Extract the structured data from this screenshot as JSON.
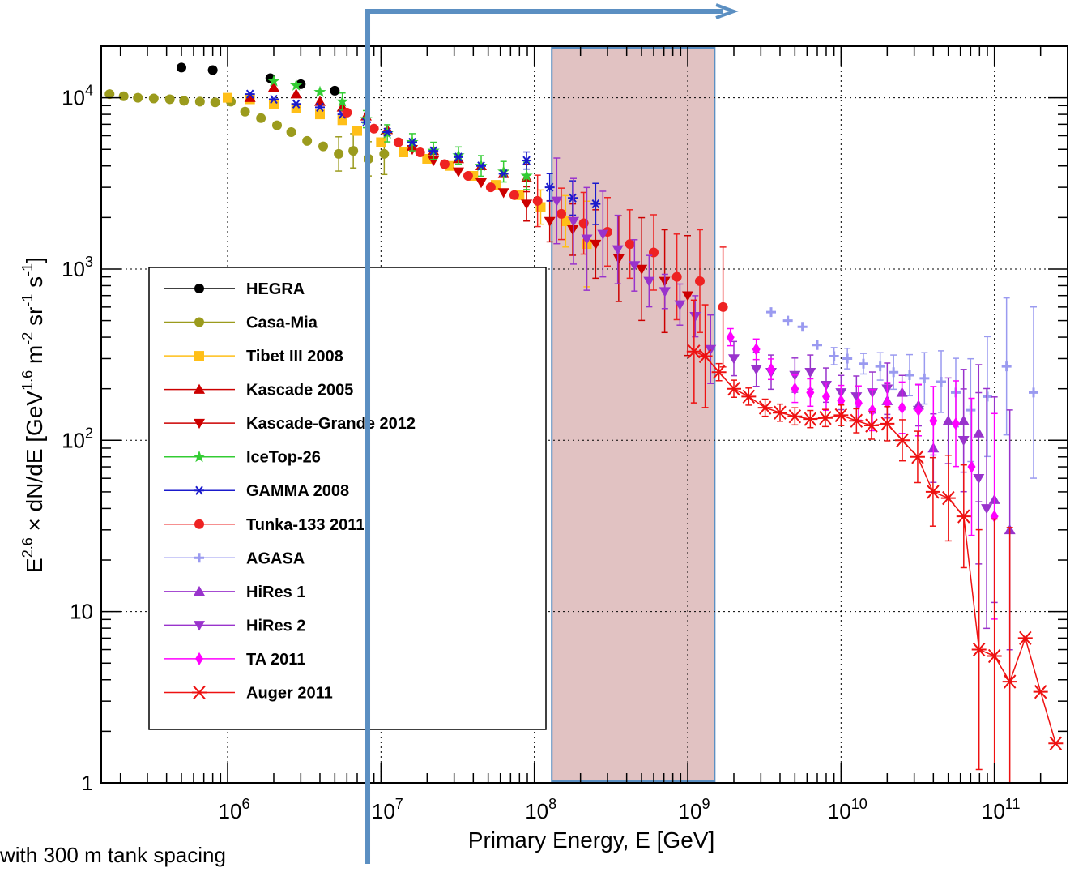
{
  "chart_data": {
    "type": "scatter",
    "xlabel": "Primary Energy, E [GeV]",
    "ylabel": "E^{2.6} × dN/dE [GeV^{1.6} m^{-2} sr^{-1} s^{-1}]",
    "xscale": "log",
    "yscale": "log",
    "xlim": [
      150000,
      300000000000
    ],
    "ylim": [
      1,
      20000
    ],
    "grid": true,
    "legend_position": "lower-left inside",
    "x_tick_labels": [
      {
        "value": 1000000,
        "base": "10",
        "exp": "6"
      },
      {
        "value": 10000000,
        "base": "10",
        "exp": "7"
      },
      {
        "value": 100000000,
        "base": "10",
        "exp": "8"
      },
      {
        "value": 1000000000,
        "base": "10",
        "exp": "9"
      },
      {
        "value": 10000000000,
        "base": "10",
        "exp": "10"
      },
      {
        "value": 100000000000,
        "base": "10",
        "exp": "11"
      }
    ],
    "y_tick_labels": [
      {
        "value": 1,
        "base": "1",
        "exp": ""
      },
      {
        "value": 10,
        "base": "10",
        "exp": ""
      },
      {
        "value": 100,
        "base": "10",
        "exp": "2"
      },
      {
        "value": 1000,
        "base": "10",
        "exp": "3"
      },
      {
        "value": 10000,
        "base": "10",
        "exp": "4"
      }
    ],
    "highlight_band": {
      "x_range": [
        130000000,
        1500000000
      ],
      "color": "#c9908f"
    },
    "overlay_arrow": {
      "x": 8200000,
      "x_end": 2000000000,
      "color": "#5b8fc2"
    },
    "series": [
      {
        "name": "HEGRA",
        "color": "#000000",
        "marker": "circle",
        "points": [
          [
            500000,
            15000,
            0
          ],
          [
            800000,
            14500,
            0
          ],
          [
            1900000,
            13000,
            0
          ],
          [
            3000000,
            12000,
            0
          ],
          [
            5000000,
            11000,
            0
          ]
        ]
      },
      {
        "name": "Casa-Mia",
        "color": "#9b9b1d",
        "marker": "circle",
        "points": [
          [
            170000,
            10500,
            0
          ],
          [
            210000,
            10200,
            0
          ],
          [
            260000,
            10000,
            0
          ],
          [
            330000,
            9900,
            0
          ],
          [
            420000,
            9800,
            0
          ],
          [
            520000,
            9600,
            0
          ],
          [
            660000,
            9500,
            0
          ],
          [
            830000,
            9400,
            0
          ],
          [
            1050000,
            9500,
            0
          ],
          [
            1300000,
            8300,
            0
          ],
          [
            1650000,
            7600,
            0
          ],
          [
            2100000,
            6900,
            0
          ],
          [
            2600000,
            6300,
            0
          ],
          [
            3300000,
            5600,
            0
          ],
          [
            4200000,
            5200,
            0
          ],
          [
            5300000,
            4700,
            0.1
          ],
          [
            6600000,
            4900,
            0.1
          ],
          [
            8300000,
            4400,
            0.1
          ],
          [
            10500000,
            4700,
            0.12
          ]
        ]
      },
      {
        "name": "Tibet III 2008",
        "color": "#ffbf18",
        "marker": "square",
        "points": [
          [
            1000000,
            10000,
            0
          ],
          [
            1400000,
            9800,
            0
          ],
          [
            2000000,
            9200,
            0
          ],
          [
            2800000,
            8700,
            0
          ],
          [
            4000000,
            8000,
            0
          ],
          [
            5600000,
            7400,
            0
          ],
          [
            7000000,
            6400,
            0
          ],
          [
            10000000,
            5500,
            0
          ],
          [
            14000000,
            4800,
            0
          ],
          [
            20000000,
            4400,
            0
          ],
          [
            28000000,
            4000,
            0
          ],
          [
            40000000,
            3500,
            0
          ],
          [
            56000000,
            3100,
            0
          ],
          [
            80000000,
            2700,
            0
          ],
          [
            110000000,
            2300,
            0.1
          ],
          [
            160000000,
            1900,
            0.15
          ],
          [
            220000000,
            1400,
            0.25
          ]
        ]
      },
      {
        "name": "Kascade 2005",
        "color": "#cc0000",
        "marker": "tri-up",
        "points": [
          [
            1400000,
            10000,
            0
          ],
          [
            2000000,
            11500,
            0
          ],
          [
            2800000,
            10500,
            0
          ],
          [
            4000000,
            9500,
            0
          ],
          [
            5600000,
            8800,
            0
          ],
          [
            8000000,
            7800,
            0
          ],
          [
            11000000,
            6500,
            0
          ],
          [
            16000000,
            5200,
            0
          ],
          [
            22000000,
            4900,
            0
          ],
          [
            32000000,
            4400,
            0
          ],
          [
            45000000,
            4000,
            0
          ],
          [
            63000000,
            3600,
            0
          ],
          [
            89000000,
            3400,
            0.08
          ]
        ]
      },
      {
        "name": "Kascade-Grande 2012",
        "color": "#cc0000",
        "marker": "tri-down",
        "points": [
          [
            16000000,
            5000,
            0
          ],
          [
            22000000,
            4300,
            0
          ],
          [
            32000000,
            3700,
            0
          ],
          [
            45000000,
            3200,
            0
          ],
          [
            63000000,
            2800,
            0
          ],
          [
            89000000,
            2400,
            0.1
          ],
          [
            126000000,
            1900,
            0.12
          ],
          [
            178000000,
            1700,
            0.15
          ],
          [
            251000000,
            1400,
            0.2
          ],
          [
            355000000,
            1150,
            0.25
          ],
          [
            501000000,
            1000,
            0.3
          ],
          [
            708000000,
            850,
            0.3
          ],
          [
            1000000000,
            700,
            0.35
          ]
        ]
      },
      {
        "name": "IceTop-26",
        "color": "#33cc33",
        "marker": "star",
        "points": [
          [
            2000000,
            12500,
            0
          ],
          [
            2800000,
            11800,
            0
          ],
          [
            4000000,
            10800,
            0
          ],
          [
            5600000,
            9500,
            0.05
          ],
          [
            8000000,
            7500,
            0.05
          ],
          [
            11000000,
            6200,
            0.05
          ],
          [
            16000000,
            5500,
            0.05
          ],
          [
            22000000,
            4900,
            0.05
          ],
          [
            32000000,
            4600,
            0.05
          ],
          [
            45000000,
            4000,
            0.06
          ],
          [
            63000000,
            3700,
            0.06
          ],
          [
            89000000,
            3500,
            0.08
          ]
        ]
      },
      {
        "name": "GAMMA 2008",
        "color": "#1a1acc",
        "marker": "asterisk",
        "points": [
          [
            1400000,
            10500,
            0
          ],
          [
            2000000,
            9800,
            0
          ],
          [
            2800000,
            9200,
            0
          ],
          [
            4000000,
            8800,
            0
          ],
          [
            5600000,
            8000,
            0
          ],
          [
            8000000,
            7200,
            0
          ],
          [
            11000000,
            6300,
            0
          ],
          [
            16000000,
            5500,
            0
          ],
          [
            22000000,
            4900,
            0
          ],
          [
            32000000,
            4500,
            0
          ],
          [
            45000000,
            4000,
            0
          ],
          [
            63000000,
            3600,
            0
          ],
          [
            89000000,
            4300,
            0.05
          ],
          [
            126000000,
            3000,
            0.08
          ],
          [
            178000000,
            2600,
            0.1
          ],
          [
            251000000,
            2400,
            0.12
          ]
        ]
      },
      {
        "name": "Tunka-133 2011",
        "color": "#ee2222",
        "marker": "circle",
        "points": [
          [
            6000000,
            8200,
            0
          ],
          [
            9000000,
            6600,
            0
          ],
          [
            13000000,
            5500,
            0
          ],
          [
            18000000,
            4800,
            0
          ],
          [
            26000000,
            4100,
            0
          ],
          [
            37000000,
            3500,
            0
          ],
          [
            52000000,
            3000,
            0
          ],
          [
            74000000,
            2700,
            0
          ],
          [
            105000000,
            2500,
            0.15
          ],
          [
            150000000,
            2100,
            0.15
          ],
          [
            210000000,
            1850,
            0.18
          ],
          [
            300000000,
            1650,
            0.2
          ],
          [
            420000000,
            1400,
            0.2
          ],
          [
            600000000,
            1250,
            0.22
          ],
          [
            850000000,
            900,
            0.25
          ],
          [
            1200000000,
            850,
            0.3
          ],
          [
            1700000000,
            600,
            0.35
          ]
        ]
      },
      {
        "name": "AGASA",
        "color": "#9a9af0",
        "marker": "plus",
        "points": [
          [
            3500000000,
            560,
            0
          ],
          [
            4500000000,
            500,
            0
          ],
          [
            5600000000,
            460,
            0
          ],
          [
            7000000000,
            360,
            0
          ],
          [
            9000000000,
            310,
            0.05
          ],
          [
            11000000000,
            300,
            0.06
          ],
          [
            14000000000,
            280,
            0.06
          ],
          [
            18000000000,
            270,
            0.08
          ],
          [
            22000000000,
            250,
            0.1
          ],
          [
            28000000000,
            240,
            0.12
          ],
          [
            35000000000,
            230,
            0.15
          ],
          [
            45000000000,
            220,
            0.18
          ],
          [
            56000000000,
            190,
            0.2
          ],
          [
            70000000000,
            150,
            0.3
          ],
          [
            90000000000,
            180,
            0.35
          ],
          [
            120000000000,
            270,
            0.4
          ],
          [
            180000000000,
            190,
            0.5
          ]
        ]
      },
      {
        "name": "HiRes 1",
        "color": "#9933cc",
        "marker": "tri-up",
        "points": [
          [
            20000000000,
            170,
            0.1
          ],
          [
            25000000000,
            190,
            0.1
          ],
          [
            32000000000,
            160,
            0.12
          ],
          [
            40000000000,
            90,
            0.2
          ],
          [
            50000000000,
            130,
            0.25
          ],
          [
            63000000000,
            130,
            0.3
          ],
          [
            79000000000,
            110,
            0.4
          ],
          [
            100000000000,
            45,
            0.6
          ],
          [
            126000000000,
            30,
            0.7
          ]
        ]
      },
      {
        "name": "HiRes 2",
        "color": "#9933cc",
        "marker": "tri-down",
        "points": [
          [
            140000000,
            2500,
            0.25
          ],
          [
            180000000,
            1900,
            0.25
          ],
          [
            220000000,
            1500,
            0.3
          ],
          [
            280000000,
            1600,
            0.25
          ],
          [
            350000000,
            1300,
            0.2
          ],
          [
            450000000,
            1050,
            0.15
          ],
          [
            560000000,
            850,
            0.15
          ],
          [
            710000000,
            740,
            0.1
          ],
          [
            890000000,
            620,
            0.12
          ],
          [
            1120000000,
            530,
            0.12
          ],
          [
            1410000000,
            340,
            0.2
          ],
          [
            2000000000,
            300,
            0.1
          ],
          [
            2800000000,
            260,
            0.1
          ],
          [
            3500000000,
            250,
            0.1
          ],
          [
            5000000000,
            240,
            0.1
          ],
          [
            6300000000,
            250,
            0.1
          ],
          [
            8000000000,
            210,
            0.1
          ],
          [
            10000000000,
            190,
            0.1
          ],
          [
            12600000000,
            180,
            0.12
          ],
          [
            16000000000,
            190,
            0.12
          ],
          [
            20000000000,
            200,
            0.15
          ],
          [
            32000000000,
            150,
            0.15
          ],
          [
            63000000000,
            100,
            0.3
          ],
          [
            79000000000,
            60,
            0.5
          ],
          [
            89000000000,
            40,
            0.7
          ]
        ]
      },
      {
        "name": "TA 2011",
        "color": "#ff00ff",
        "marker": "diamond",
        "points": [
          [
            1900000000,
            400,
            0.05
          ],
          [
            2800000000,
            340,
            0.06
          ],
          [
            3500000000,
            260,
            0.06
          ],
          [
            5000000000,
            200,
            0.08
          ],
          [
            6300000000,
            190,
            0.08
          ],
          [
            8000000000,
            180,
            0.08
          ],
          [
            10000000000,
            170,
            0.09
          ],
          [
            13000000000,
            165,
            0.1
          ],
          [
            16000000000,
            150,
            0.12
          ],
          [
            20000000000,
            165,
            0.12
          ],
          [
            25000000000,
            155,
            0.15
          ],
          [
            32000000000,
            150,
            0.15
          ],
          [
            40000000000,
            130,
            0.2
          ],
          [
            56000000000,
            125,
            0.25
          ],
          [
            71000000000,
            70,
            0.4
          ],
          [
            100000000000,
            36,
            0.6
          ]
        ]
      },
      {
        "name": "Auger 2011",
        "color": "#ee1111",
        "marker": "star-line",
        "points": [
          [
            1100000000,
            330,
            0.3
          ],
          [
            1300000000,
            310,
            0.3
          ],
          [
            1600000000,
            250,
            0.05
          ],
          [
            2000000000,
            200,
            0.05
          ],
          [
            2500000000,
            180,
            0.05
          ],
          [
            3200000000,
            155,
            0.05
          ],
          [
            4000000000,
            145,
            0.05
          ],
          [
            5000000000,
            138,
            0.05
          ],
          [
            6300000000,
            133,
            0.05
          ],
          [
            7900000000,
            135,
            0.05
          ],
          [
            10000000000,
            140,
            0.06
          ],
          [
            12600000000,
            130,
            0.07
          ],
          [
            15800000000,
            122,
            0.08
          ],
          [
            20000000000,
            125,
            0.1
          ],
          [
            25100000000,
            100,
            0.12
          ],
          [
            31600000000,
            80,
            0.15
          ],
          [
            39800000000,
            50,
            0.2
          ],
          [
            50100000000,
            46,
            0.25
          ],
          [
            63100000000,
            36,
            0.3
          ],
          [
            79400000000,
            6,
            0.7
          ],
          [
            100000000000,
            5.5,
            0.8
          ],
          [
            126000000000,
            3.9,
            0.9
          ],
          [
            159000000000,
            7,
            0
          ],
          [
            200000000000,
            3.4,
            0
          ],
          [
            251000000000,
            1.7,
            0
          ]
        ]
      }
    ]
  },
  "footer_note": "with 300 m tank spacing"
}
